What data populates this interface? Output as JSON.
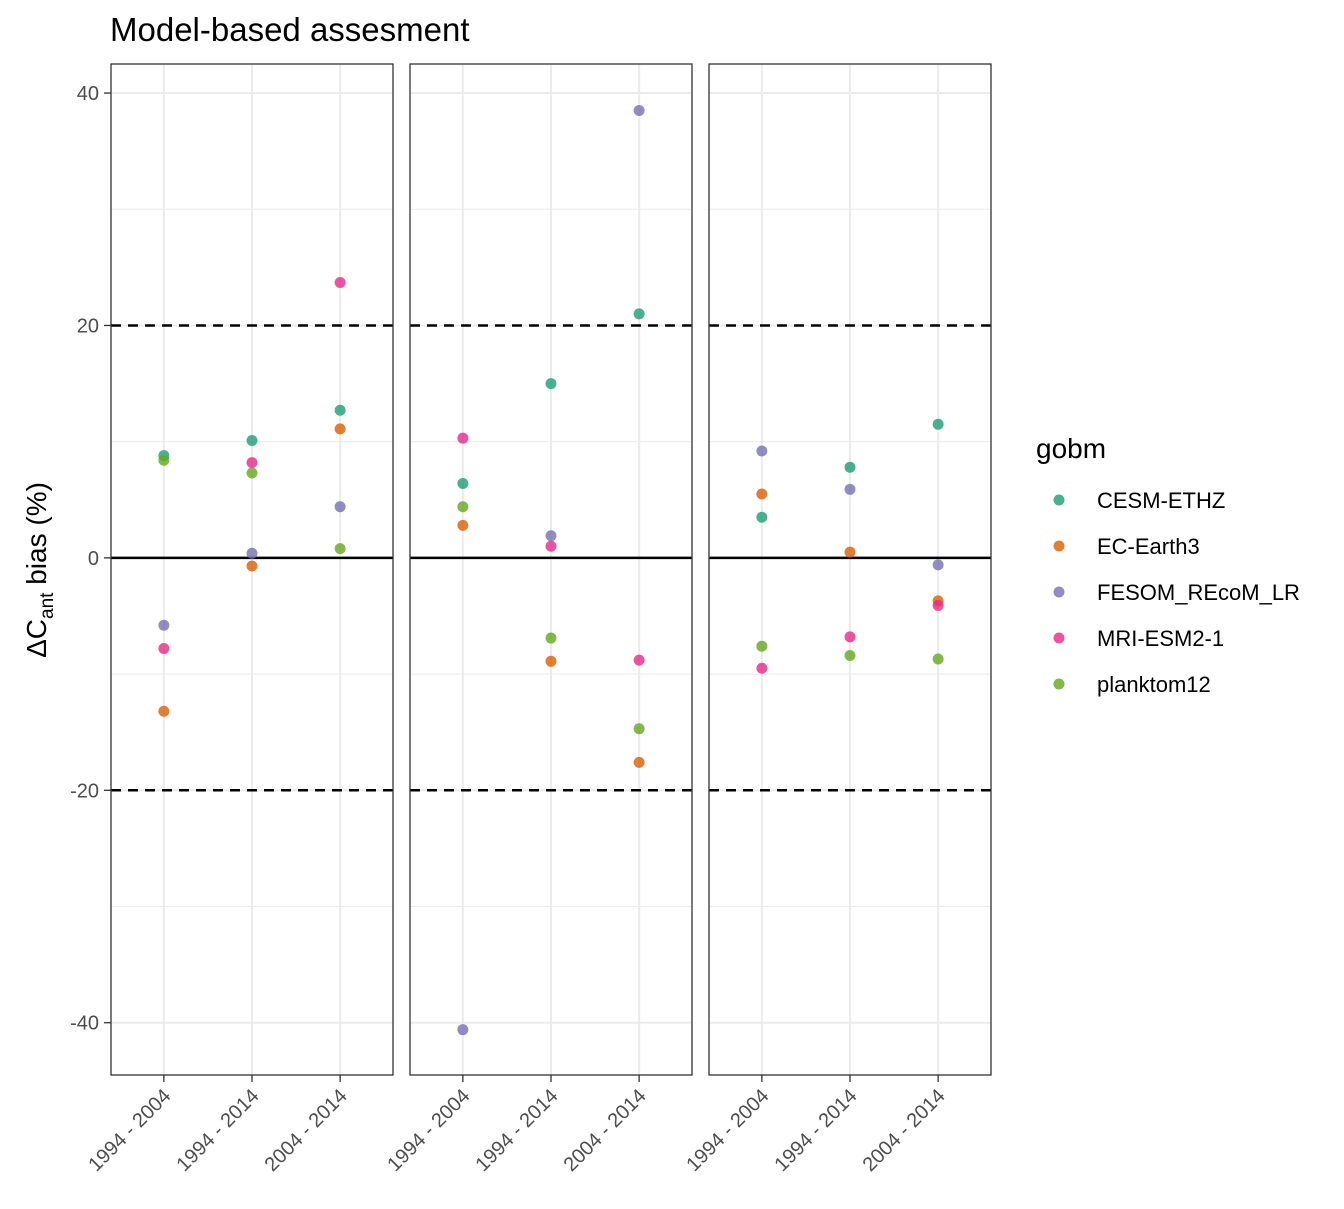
{
  "chart_data": {
    "type": "scatter",
    "title": "Model-based assesment",
    "ylabel": {
      "main": "ΔC",
      "subscript": "ant",
      "rest": " bias (%)"
    },
    "xlabel": "",
    "ylim": [
      -44.5,
      42.5
    ],
    "y_ticks": [
      40,
      20,
      0,
      -20,
      -40
    ],
    "y_tick_labels": [
      "40",
      "20",
      "0",
      "-20",
      "-40"
    ],
    "y_minor_ticks": [
      30,
      10,
      -10,
      -30
    ],
    "reference_lines": [
      {
        "y": 20,
        "style": "dashed"
      },
      {
        "y": -20,
        "style": "dashed"
      },
      {
        "y": 0,
        "style": "solid"
      }
    ],
    "categories": [
      "1994 - 2004",
      "1994 - 2014",
      "2004 - 2014"
    ],
    "grid": true,
    "legend": {
      "title": "gobm",
      "position": "right"
    },
    "series_colors": {
      "CESM-ETHZ": "#1b9e77",
      "EC-Earth3": "#d95f02",
      "FESOM_REcoM_LR": "#7570b3",
      "MRI-ESM2-1": "#e7298a",
      "planktom12": "#66a61e"
    },
    "series_names": [
      "CESM-ETHZ",
      "EC-Earth3",
      "FESOM_REcoM_LR",
      "MRI-ESM2-1",
      "planktom12"
    ],
    "panels": [
      {
        "series": [
          {
            "name": "CESM-ETHZ",
            "values": [
              8.8,
              10.1,
              12.7
            ]
          },
          {
            "name": "EC-Earth3",
            "values": [
              -13.2,
              -0.7,
              11.1
            ]
          },
          {
            "name": "FESOM_REcoM_LR",
            "values": [
              -5.8,
              0.4,
              4.4
            ]
          },
          {
            "name": "MRI-ESM2-1",
            "values": [
              -7.8,
              8.2,
              23.7
            ]
          },
          {
            "name": "planktom12",
            "values": [
              8.4,
              7.3,
              0.8
            ]
          }
        ]
      },
      {
        "series": [
          {
            "name": "CESM-ETHZ",
            "values": [
              6.4,
              15.0,
              21.0
            ]
          },
          {
            "name": "EC-Earth3",
            "values": [
              2.8,
              -8.9,
              -17.6
            ]
          },
          {
            "name": "FESOM_REcoM_LR",
            "values": [
              -40.6,
              1.9,
              38.5
            ]
          },
          {
            "name": "MRI-ESM2-1",
            "values": [
              10.3,
              1.0,
              -8.8
            ]
          },
          {
            "name": "planktom12",
            "values": [
              4.4,
              -6.9,
              -14.7
            ]
          }
        ]
      },
      {
        "series": [
          {
            "name": "CESM-ETHZ",
            "values": [
              3.5,
              7.8,
              11.5
            ]
          },
          {
            "name": "EC-Earth3",
            "values": [
              5.5,
              0.5,
              -3.7
            ]
          },
          {
            "name": "FESOM_REcoM_LR",
            "values": [
              9.2,
              5.9,
              -0.6
            ]
          },
          {
            "name": "MRI-ESM2-1",
            "values": [
              -9.5,
              -6.8,
              -4.1
            ]
          },
          {
            "name": "planktom12",
            "values": [
              -7.6,
              -8.4,
              -8.7
            ]
          }
        ]
      }
    ]
  }
}
